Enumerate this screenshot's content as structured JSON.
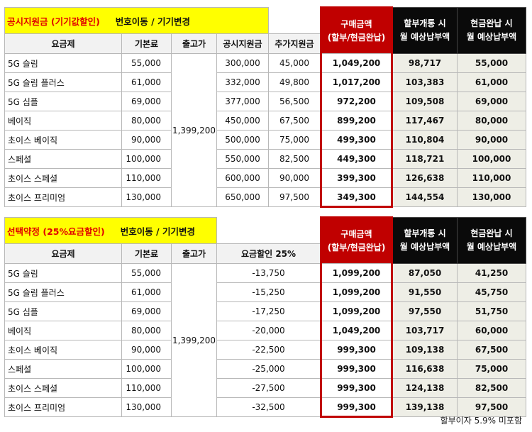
{
  "table1": {
    "title_red": "공시지원금 (기기값할인)",
    "title_black": "번호이동 / 기기변경",
    "headers": {
      "plan": "요금제",
      "base_fee": "기본료",
      "release_price": "출고가",
      "col4": "공시지원금",
      "col5": "추가지원금",
      "purchase_line1": "구매금액",
      "purchase_line2": "(할부/현금완납)",
      "installment_line1": "할부개통 시",
      "installment_line2": "월 예상납부액",
      "cash_line1": "현금완납 시",
      "cash_line2": "월 예상납부액"
    },
    "release_price": "1,399,200",
    "rows": [
      {
        "plan": "5G 슬림",
        "base": "55,000",
        "c4": "300,000",
        "c5": "45,000",
        "purchase": "1,049,200",
        "installment": "98,717",
        "cash": "55,000"
      },
      {
        "plan": "5G 슬림 플러스",
        "base": "61,000",
        "c4": "332,000",
        "c5": "49,800",
        "purchase": "1,017,200",
        "installment": "103,383",
        "cash": "61,000"
      },
      {
        "plan": "5G 심플",
        "base": "69,000",
        "c4": "377,000",
        "c5": "56,500",
        "purchase": "972,200",
        "installment": "109,508",
        "cash": "69,000"
      },
      {
        "plan": "베이직",
        "base": "80,000",
        "c4": "450,000",
        "c5": "67,500",
        "purchase": "899,200",
        "installment": "117,467",
        "cash": "80,000"
      },
      {
        "plan": "초이스 베이직",
        "base": "90,000",
        "c4": "500,000",
        "c5": "75,000",
        "purchase": "499,300",
        "installment": "110,804",
        "cash": "90,000"
      },
      {
        "plan": "스페셜",
        "base": "100,000",
        "c4": "550,000",
        "c5": "82,500",
        "purchase": "449,300",
        "installment": "118,721",
        "cash": "100,000"
      },
      {
        "plan": "초이스 스페셜",
        "base": "110,000",
        "c4": "600,000",
        "c5": "90,000",
        "purchase": "399,300",
        "installment": "126,638",
        "cash": "110,000"
      },
      {
        "plan": "초이스 프리미엄",
        "base": "130,000",
        "c4": "650,000",
        "c5": "97,500",
        "purchase": "349,300",
        "installment": "144,554",
        "cash": "130,000"
      }
    ]
  },
  "table2": {
    "title_red": "선택약정 (25%요금할인)",
    "title_black": "번호이동 / 기기변경",
    "headers": {
      "plan": "요금제",
      "base_fee": "기본료",
      "release_price": "출고가",
      "discount": "요금할인 25%",
      "purchase_line1": "구매금액",
      "purchase_line2": "(할부/현금완납)",
      "installment_line1": "할부개통 시",
      "installment_line2": "월 예상납부액",
      "cash_line1": "현금완납 시",
      "cash_line2": "월 예상납부액"
    },
    "release_price": "1,399,200",
    "rows": [
      {
        "plan": "5G 슬림",
        "base": "55,000",
        "discount": "-13,750",
        "purchase": "1,099,200",
        "installment": "87,050",
        "cash": "41,250"
      },
      {
        "plan": "5G 슬림 플러스",
        "base": "61,000",
        "discount": "-15,250",
        "purchase": "1,099,200",
        "installment": "91,550",
        "cash": "45,750"
      },
      {
        "plan": "5G 심플",
        "base": "69,000",
        "discount": "-17,250",
        "purchase": "1,099,200",
        "installment": "97,550",
        "cash": "51,750"
      },
      {
        "plan": "베이직",
        "base": "80,000",
        "discount": "-20,000",
        "purchase": "1,049,200",
        "installment": "103,717",
        "cash": "60,000"
      },
      {
        "plan": "초이스 베이직",
        "base": "90,000",
        "discount": "-22,500",
        "purchase": "999,300",
        "installment": "109,138",
        "cash": "67,500"
      },
      {
        "plan": "스페셜",
        "base": "100,000",
        "discount": "-25,000",
        "purchase": "999,300",
        "installment": "116,638",
        "cash": "75,000"
      },
      {
        "plan": "초이스 스페셜",
        "base": "110,000",
        "discount": "-27,500",
        "purchase": "999,300",
        "installment": "124,138",
        "cash": "82,500"
      },
      {
        "plan": "초이스 프리미엄",
        "base": "130,000",
        "discount": "-32,500",
        "purchase": "999,300",
        "installment": "139,138",
        "cash": "97,500"
      }
    ]
  },
  "footnote": "할부이자 5.9% 미포함"
}
